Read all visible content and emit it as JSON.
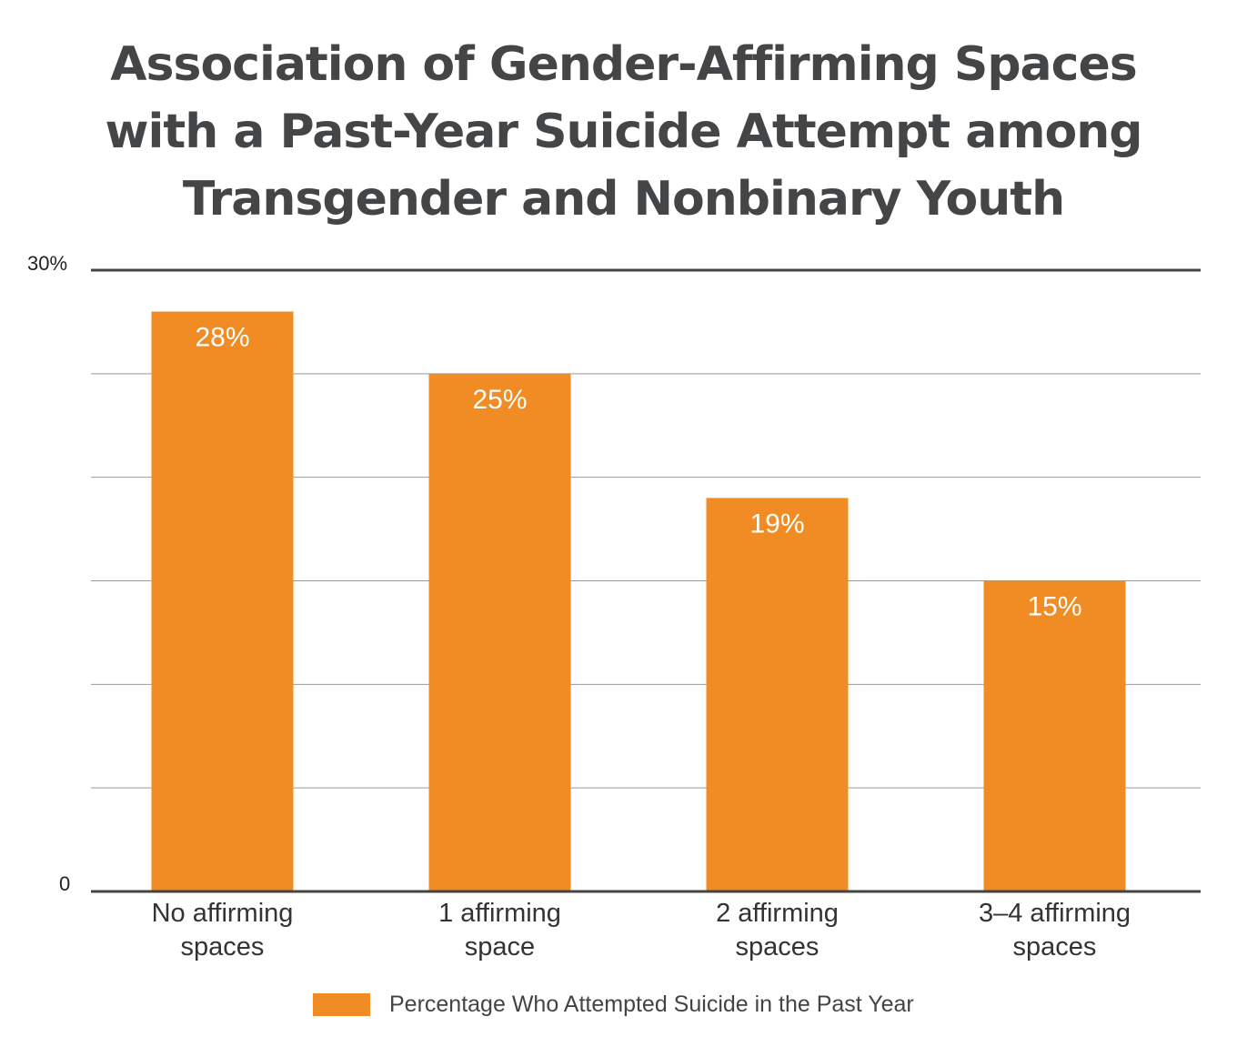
{
  "chart_data": {
    "type": "bar",
    "title": [
      "Association of Gender-Affirming Spaces",
      "with a Past-Year Suicide Attempt among",
      "Transgender and Nonbinary Youth"
    ],
    "categories": [
      [
        "No affirming",
        "spaces"
      ],
      [
        "1 affirming",
        "space"
      ],
      [
        "2 affirming",
        "spaces"
      ],
      [
        "3–4 affirming",
        "spaces"
      ]
    ],
    "series": [
      {
        "name": "Percentage Who Attempted Suicide in the Past Year",
        "values": [
          28,
          25,
          19,
          15
        ],
        "labels": [
          "28%",
          "25%",
          "19%",
          "15%"
        ]
      }
    ],
    "ylim": [
      0,
      30
    ],
    "y_tick_labels": [
      {
        "value": 30,
        "label": "30%"
      },
      {
        "value": 0,
        "label": "0"
      }
    ],
    "gridlines": [
      5,
      10,
      15,
      20,
      25,
      30
    ],
    "grid": true,
    "legend": "bottom",
    "colors": {
      "bar": "#f08c23",
      "axis": "#444444",
      "grid": "#999999"
    }
  }
}
